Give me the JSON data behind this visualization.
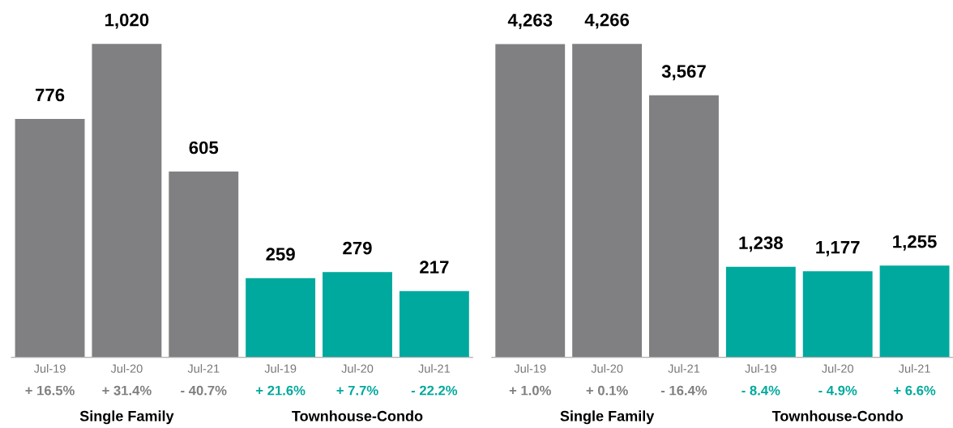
{
  "chart_data": [
    {
      "type": "bar",
      "categories": [
        "Jul-19",
        "Jul-20",
        "Jul-21",
        "Jul-19",
        "Jul-20",
        "Jul-21"
      ],
      "legend": false,
      "grid": false,
      "series": [
        {
          "color": "#808083",
          "values": [
            776,
            1020,
            605,
            null,
            null,
            null
          ],
          "value_labels": [
            "776",
            "1,020",
            "605",
            null,
            null,
            null
          ]
        },
        {
          "color": "#00a99d",
          "values": [
            null,
            null,
            null,
            259,
            279,
            217
          ],
          "value_labels": [
            null,
            null,
            null,
            "259",
            "279",
            "217"
          ]
        }
      ],
      "annotations": [
        "+ 16.5%",
        "+ 31.4%",
        "- 40.7%",
        "+ 21.6%",
        "+ 7.7%",
        "- 22.2%",
        "Single Family",
        "Townhouse-Condo"
      ]
    },
    {
      "type": "bar",
      "categories": [
        "Jul-19",
        "Jul-20",
        "Jul-21",
        "Jul-19",
        "Jul-20",
        "Jul-21"
      ],
      "legend": false,
      "grid": false,
      "series": [
        {
          "color": "#808083",
          "values": [
            4263,
            4266,
            3567,
            null,
            null,
            null
          ],
          "value_labels": [
            "4,263",
            "4,266",
            "3,567",
            null,
            null,
            null
          ]
        },
        {
          "color": "#00a99d",
          "values": [
            null,
            null,
            null,
            1238,
            1177,
            1255
          ],
          "value_labels": [
            null,
            null,
            null,
            "1,238",
            "1,177",
            "1,255"
          ]
        }
      ],
      "annotations": [
        "+ 1.0%",
        "+ 0.1%",
        "- 16.4%",
        "- 8.4%",
        "- 4.9%",
        "+ 6.6%",
        "Single Family",
        "Townhouse-Condo"
      ]
    }
  ]
}
